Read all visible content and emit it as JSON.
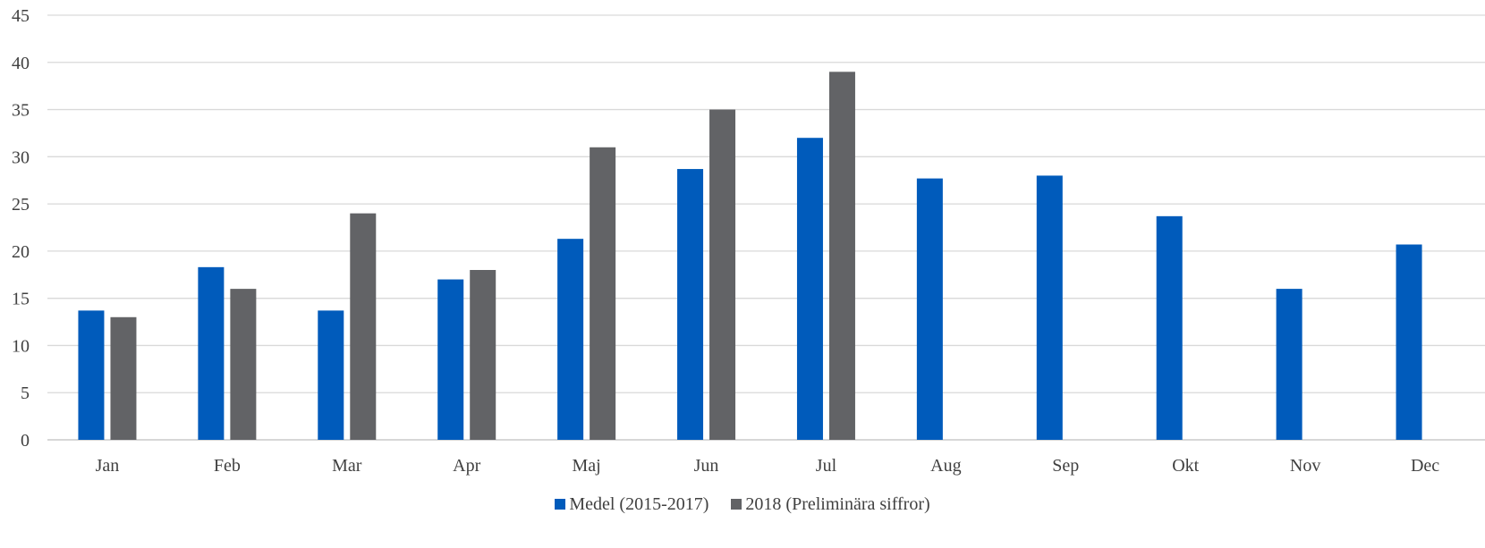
{
  "colors": {
    "series1": "#005bbb",
    "series2": "#626366",
    "grid": "#d9d9d9",
    "axis": "#bfbfbf",
    "text": "#404040"
  },
  "chart_data": {
    "type": "bar",
    "title": "",
    "xlabel": "",
    "ylabel": "",
    "categories": [
      "Jan",
      "Feb",
      "Mar",
      "Apr",
      "Maj",
      "Jun",
      "Jul",
      "Aug",
      "Sep",
      "Okt",
      "Nov",
      "Dec"
    ],
    "ylim": [
      0,
      45
    ],
    "yticks": [
      "0",
      "5",
      "10",
      "15",
      "20",
      "25",
      "30",
      "35",
      "40",
      "45"
    ],
    "grid": true,
    "legend_position": "bottom",
    "series": [
      {
        "name": "Medel (2015-2017)",
        "color": "#005bbb",
        "values": [
          13.7,
          18.3,
          13.7,
          17,
          21.3,
          28.7,
          32,
          27.7,
          28,
          23.7,
          16,
          20.7
        ]
      },
      {
        "name": "2018 (Preliminära siffror)",
        "color": "#626366",
        "values": [
          13,
          16,
          24,
          18,
          31,
          35,
          39,
          null,
          null,
          null,
          null,
          null
        ]
      }
    ]
  }
}
